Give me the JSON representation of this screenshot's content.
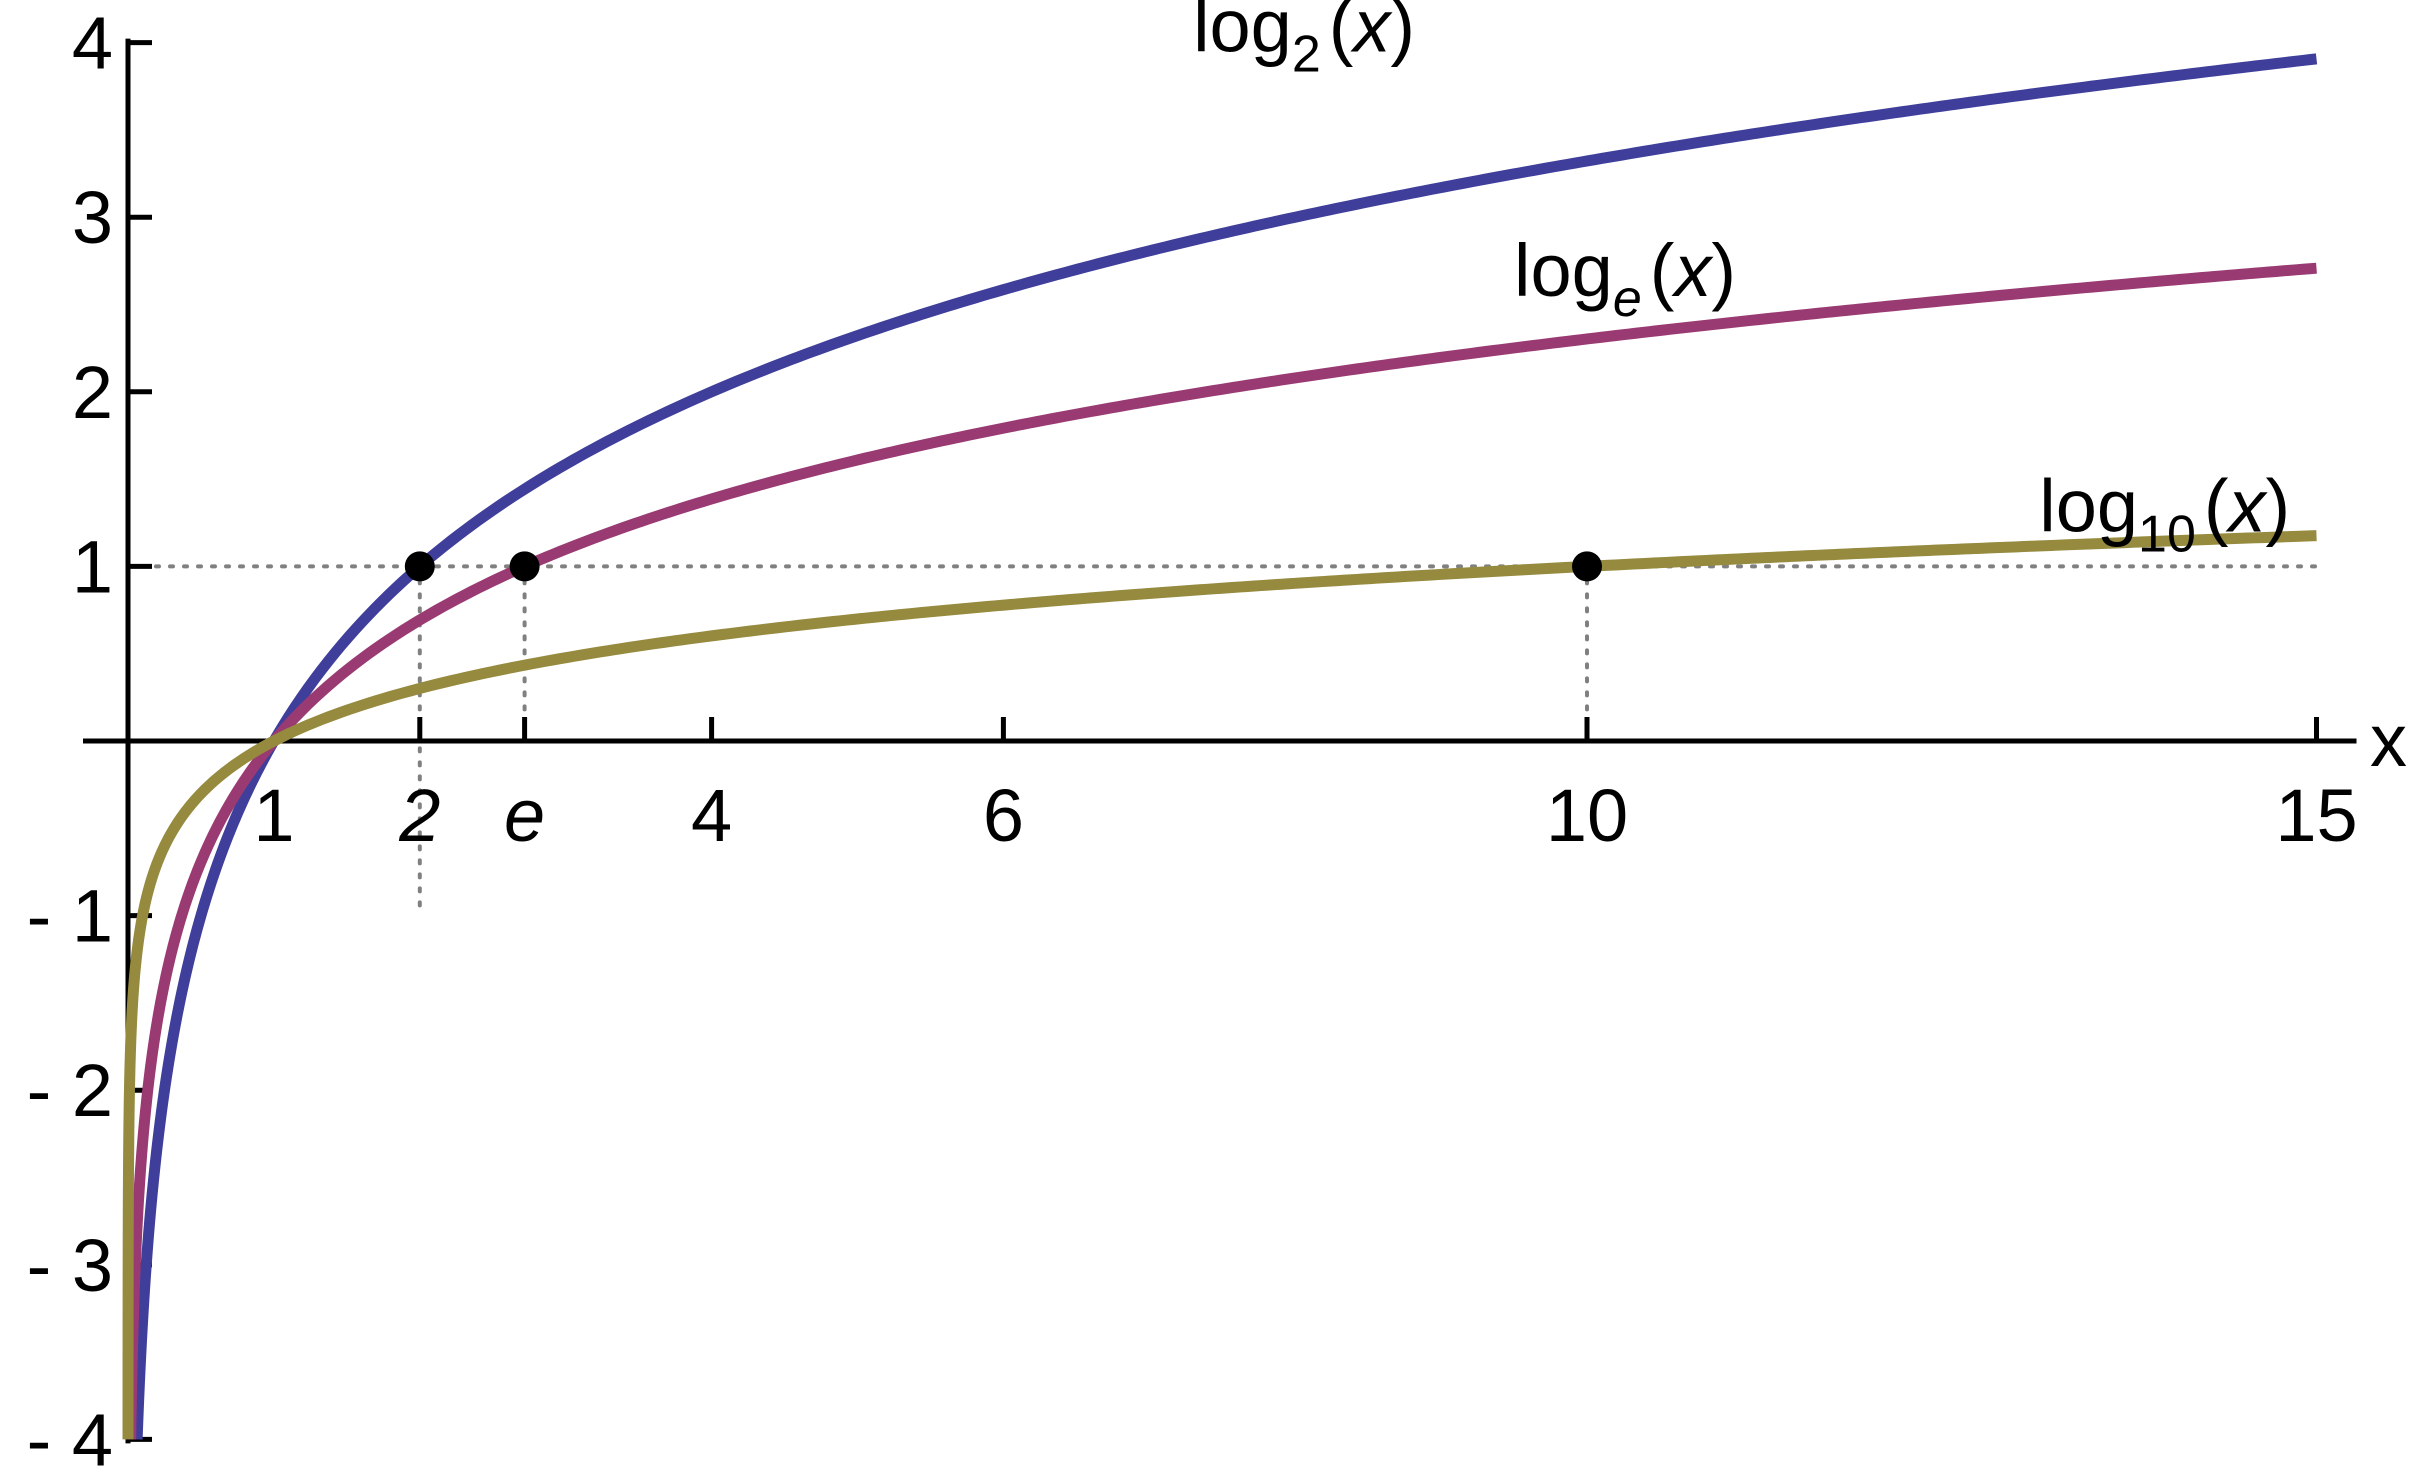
{
  "chart_data": {
    "type": "line",
    "title": "",
    "xlabel": "x",
    "ylabel": "",
    "xlim": [
      0,
      15
    ],
    "ylim": [
      -4,
      4
    ],
    "grid": false,
    "legend": "none",
    "x_ticks": [
      {
        "value": 1,
        "label": "1"
      },
      {
        "value": 2,
        "label": "2"
      },
      {
        "value": 2.718281828,
        "label": "e"
      },
      {
        "value": 4,
        "label": "4"
      },
      {
        "value": 6,
        "label": "6"
      },
      {
        "value": 10,
        "label": "10"
      },
      {
        "value": 15,
        "label": "15"
      }
    ],
    "y_ticks": [
      {
        "value": 4,
        "label": "4"
      },
      {
        "value": 3,
        "label": "3"
      },
      {
        "value": 2,
        "label": "2"
      },
      {
        "value": 1,
        "label": "1"
      },
      {
        "value": -1,
        "label": "- 1"
      },
      {
        "value": -2,
        "label": "- 2"
      },
      {
        "value": -3,
        "label": "- 3"
      },
      {
        "value": -4,
        "label": "- 4"
      }
    ],
    "series": [
      {
        "name_main": "log",
        "name_sub": "2",
        "name_tail": "(x)",
        "color": "#3f3f9b",
        "base": 2,
        "x": [
          0.0625,
          0.0884,
          0.125,
          0.1768,
          0.25,
          0.3536,
          0.5,
          0.7071,
          1,
          1.5,
          2,
          3,
          4,
          5,
          6,
          7,
          8,
          9,
          10,
          11,
          12,
          13,
          14,
          15
        ],
        "y": [
          -4,
          -3.5,
          -3,
          -2.5,
          -2,
          -1.5,
          -1,
          -0.5,
          0,
          0.585,
          1,
          1.585,
          2,
          2.322,
          2.585,
          2.807,
          3,
          3.17,
          3.322,
          3.459,
          3.585,
          3.7,
          3.807,
          3.907
        ]
      },
      {
        "name_main": "log",
        "name_sub": "e",
        "name_tail": "(x)",
        "color": "#9a3a72",
        "base": 2.718281828,
        "x": [
          0.0183,
          0.0302,
          0.0498,
          0.0821,
          0.1353,
          0.2231,
          0.3679,
          0.6065,
          1,
          1.5,
          2,
          2.7183,
          3,
          4,
          5,
          6,
          7,
          8,
          9,
          10,
          11,
          12,
          13,
          14,
          15
        ],
        "y": [
          -4,
          -3.5,
          -3,
          -2.5,
          -2,
          -1.5,
          -1,
          -0.5,
          0,
          0.405,
          0.693,
          1,
          1.099,
          1.386,
          1.609,
          1.792,
          1.946,
          2.079,
          2.197,
          2.303,
          2.398,
          2.485,
          2.565,
          2.639,
          2.708
        ]
      },
      {
        "name_main": "log",
        "name_sub": "10",
        "name_tail": "(x)",
        "color": "#958a3e",
        "base": 10,
        "x": [
          0.0001,
          0.001,
          0.01,
          0.05,
          0.1,
          0.2,
          0.3,
          0.5,
          0.7,
          1,
          1.5,
          2,
          3,
          4,
          5,
          6,
          7,
          8,
          9,
          10,
          11,
          12,
          13,
          14,
          15
        ],
        "y": [
          -4,
          -3,
          -2,
          -1.301,
          -1,
          -0.699,
          -0.523,
          -0.301,
          -0.155,
          0,
          0.176,
          0.301,
          0.477,
          0.602,
          0.699,
          0.778,
          0.845,
          0.903,
          0.954,
          1,
          1.041,
          1.079,
          1.114,
          1.146,
          1.176
        ]
      }
    ],
    "highlight_points": [
      {
        "x": 2,
        "y": 1
      },
      {
        "x": 2.718281828,
        "y": 1
      },
      {
        "x": 10,
        "y": 1
      }
    ],
    "reference_line_y": 1
  }
}
